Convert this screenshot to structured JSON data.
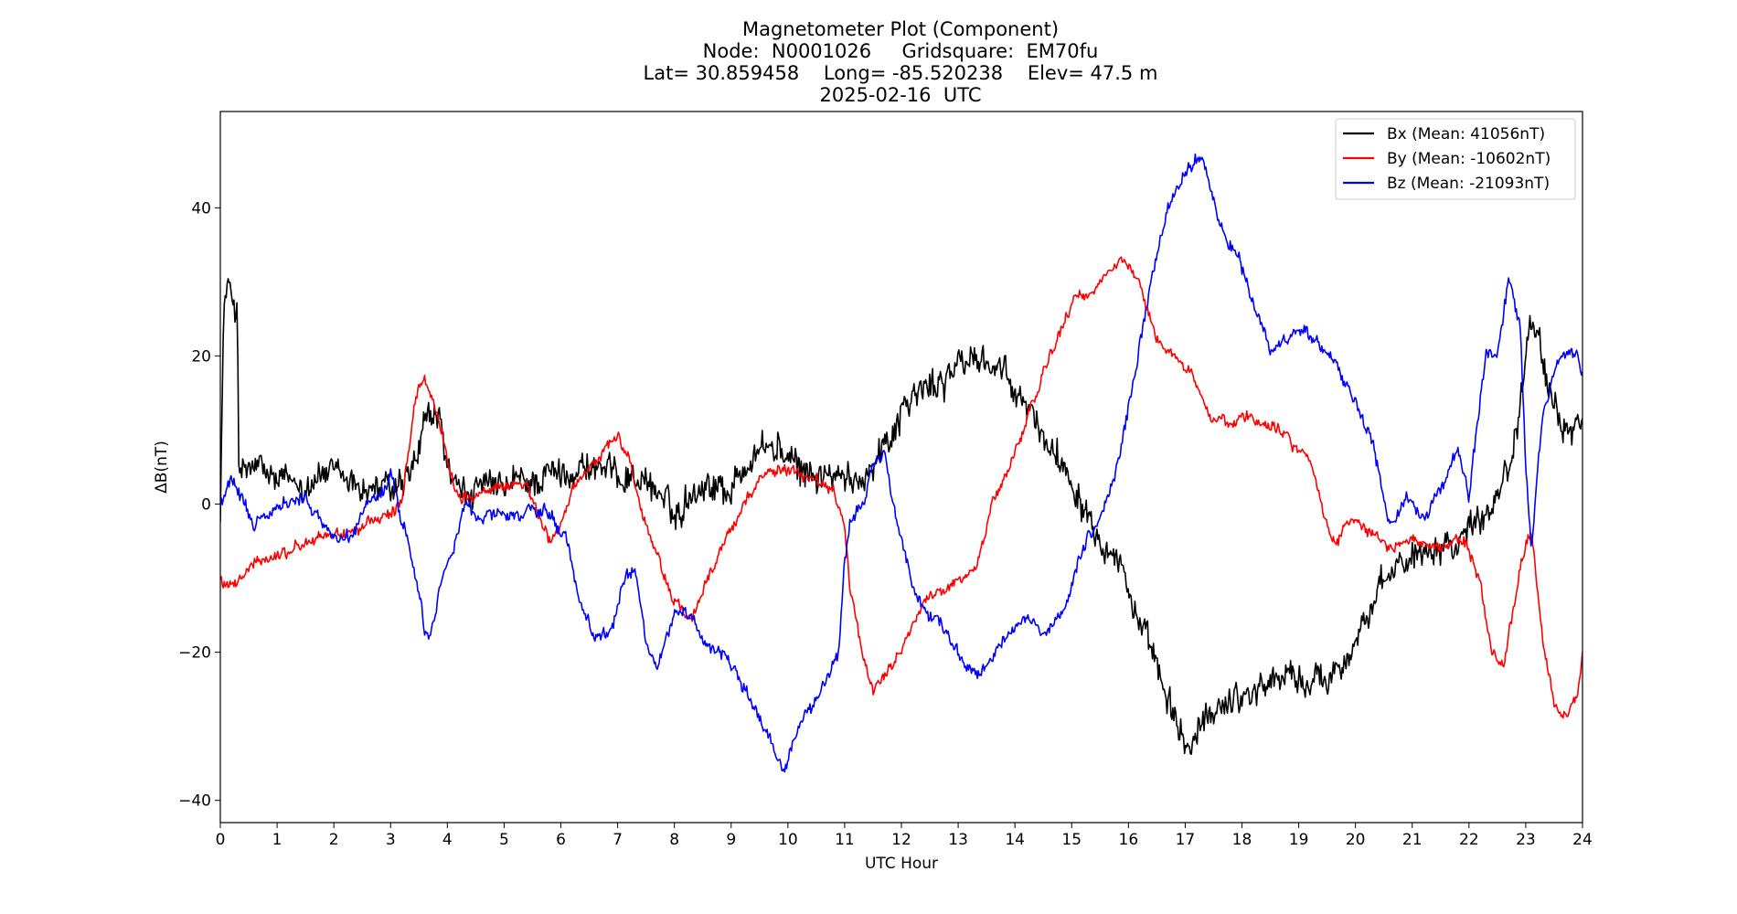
{
  "chart_data": {
    "type": "line",
    "title_lines": [
      "Magnetometer Plot (Component)",
      "Node:  N0001026     Gridsquare:  EM70fu",
      "Lat= 30.859458    Long= -85.520238    Elev= 47.5 m",
      "2025-02-16  UTC"
    ],
    "xlabel": "UTC Hour",
    "ylabel": "ΔB(nT)",
    "xlim": [
      0,
      24
    ],
    "ylim": [
      -43,
      53
    ],
    "xticks": [
      0,
      1,
      2,
      3,
      4,
      5,
      6,
      7,
      8,
      9,
      10,
      11,
      12,
      13,
      14,
      15,
      16,
      17,
      18,
      19,
      20,
      21,
      22,
      23,
      24
    ],
    "yticks": [
      -40,
      -20,
      0,
      20,
      40
    ],
    "ytick_labels": [
      "−40",
      "−20",
      "0",
      "20",
      "40"
    ],
    "grid": false,
    "legend_position": "top-right",
    "series": [
      {
        "name": "Bx (Mean: 41056nT)",
        "color": "#000000",
        "noise": 2.2,
        "x": [
          0,
          0.05,
          0.08,
          0.12,
          0.2,
          0.3,
          0.33,
          0.4,
          0.6,
          0.8,
          1.0,
          1.3,
          1.5,
          1.8,
          2.0,
          2.3,
          2.6,
          2.9,
          3.1,
          3.3,
          3.5,
          3.6,
          3.8,
          3.9,
          4.0,
          4.15,
          4.3,
          4.5,
          4.8,
          5.0,
          5.2,
          5.5,
          5.8,
          6.0,
          6.3,
          6.6,
          6.9,
          7.2,
          7.5,
          7.8,
          8.0,
          8.3,
          8.6,
          9.0,
          9.3,
          9.6,
          9.9,
          10.1,
          10.4,
          10.7,
          11.0,
          11.2,
          11.5,
          11.8,
          12.0,
          12.3,
          12.6,
          12.9,
          13.1,
          13.4,
          13.7,
          14.0,
          14.3,
          14.6,
          14.9,
          15.1,
          15.3,
          15.5,
          15.8,
          16.0,
          16.2,
          16.5,
          16.7,
          16.9,
          17.1,
          17.3,
          17.6,
          17.9,
          18.2,
          18.5,
          18.8,
          19.1,
          19.4,
          19.7,
          20.0,
          20.3,
          20.6,
          20.9,
          21.2,
          21.5,
          21.8,
          22.0,
          22.3,
          22.5,
          22.7,
          22.85,
          23.0,
          23.1,
          23.2,
          23.3,
          23.5,
          23.7,
          23.9,
          24.0
        ],
        "y": [
          0,
          22,
          28,
          29,
          28,
          26,
          4,
          4,
          5,
          4,
          3,
          3,
          3,
          4,
          4,
          3,
          2,
          2,
          2,
          3,
          7,
          11,
          12,
          10,
          5,
          2,
          1,
          2,
          2,
          2,
          3,
          3,
          4,
          4,
          5,
          5,
          4,
          4,
          3,
          1,
          -2,
          2,
          3,
          2,
          6,
          8,
          7,
          5,
          4,
          4,
          3,
          3,
          6,
          9,
          13,
          15,
          16,
          18,
          19,
          20,
          18,
          15,
          12,
          8,
          5,
          2,
          -1,
          -4,
          -7,
          -11,
          -17,
          -22,
          -27,
          -31,
          -33,
          -30,
          -27,
          -26,
          -25,
          -24,
          -23,
          -24,
          -24,
          -22,
          -18,
          -14,
          -10,
          -7,
          -6,
          -5,
          -5,
          -3,
          -1,
          2,
          5,
          10,
          22,
          27,
          24,
          18,
          12,
          10,
          11,
          12
        ]
      },
      {
        "name": "By (Mean: -10602nT)",
        "color": "#ff0000",
        "noise": 0.8,
        "x": [
          0,
          0.1,
          0.3,
          0.6,
          1.0,
          1.3,
          1.6,
          1.9,
          2.2,
          2.5,
          2.8,
          3.0,
          3.2,
          3.3,
          3.4,
          3.5,
          3.6,
          3.7,
          3.9,
          4.0,
          4.2,
          4.5,
          4.8,
          5.0,
          5.2,
          5.4,
          5.6,
          5.8,
          6.0,
          6.2,
          6.5,
          6.8,
          7.0,
          7.2,
          7.5,
          7.8,
          8.0,
          8.3,
          8.6,
          9.0,
          9.3,
          9.6,
          9.9,
          10.2,
          10.5,
          10.8,
          11.0,
          11.1,
          11.3,
          11.5,
          11.8,
          12.1,
          12.4,
          12.7,
          13.0,
          13.3,
          13.6,
          13.9,
          14.1,
          14.3,
          14.6,
          14.9,
          15.1,
          15.3,
          15.6,
          15.9,
          16.2,
          16.5,
          16.8,
          17.1,
          17.4,
          17.7,
          18.0,
          18.3,
          18.6,
          18.9,
          19.2,
          19.5,
          19.7,
          19.8,
          20.0,
          20.3,
          20.6,
          20.9,
          21.2,
          21.5,
          21.8,
          22.0,
          22.2,
          22.4,
          22.6,
          22.8,
          23.0,
          23.1,
          23.3,
          23.5,
          23.7,
          23.9,
          24.0
        ],
        "y": [
          -10,
          -11,
          -11,
          -8,
          -7,
          -6,
          -5,
          -4,
          -4,
          -3,
          -2,
          -1,
          0,
          6,
          12,
          16,
          17,
          15,
          10,
          6,
          1,
          1,
          2,
          2,
          3,
          3,
          -2,
          -5,
          -3,
          2,
          5,
          8,
          9,
          6,
          -3,
          -9,
          -13,
          -16,
          -10,
          -3,
          1,
          4,
          5,
          4,
          3,
          2,
          -3,
          -12,
          -20,
          -25,
          -22,
          -18,
          -13,
          -12,
          -10,
          -9,
          0,
          5,
          9,
          13,
          20,
          25,
          28,
          28,
          31,
          33,
          30,
          22,
          20,
          18,
          12,
          11,
          12,
          11,
          11,
          8,
          6,
          -3,
          -5,
          -3,
          -2,
          -4,
          -6,
          -5,
          -5,
          -6,
          -5,
          -6,
          -11,
          -20,
          -22,
          -13,
          -5,
          -4,
          -18,
          -27,
          -29,
          -26,
          -20
        ]
      },
      {
        "name": "Bz (Mean: -21093nT)",
        "color": "#0000ff",
        "noise": 0.9,
        "x": [
          0,
          0.2,
          0.4,
          0.6,
          0.9,
          1.2,
          1.5,
          1.8,
          2.1,
          2.3,
          2.6,
          2.9,
          3.0,
          3.1,
          3.3,
          3.5,
          3.6,
          3.7,
          3.9,
          4.1,
          4.3,
          4.6,
          4.9,
          5.2,
          5.5,
          5.8,
          6.1,
          6.3,
          6.6,
          6.9,
          7.1,
          7.3,
          7.5,
          7.7,
          8.0,
          8.3,
          8.6,
          8.9,
          9.1,
          9.4,
          9.7,
          9.9,
          10.2,
          10.6,
          10.9,
          11.0,
          11.1,
          11.3,
          11.5,
          11.7,
          11.9,
          12.2,
          12.5,
          12.8,
          13.0,
          13.2,
          13.4,
          13.6,
          13.9,
          14.2,
          14.5,
          14.8,
          15.0,
          15.2,
          15.5,
          15.8,
          16.1,
          16.4,
          16.7,
          17.0,
          17.3,
          17.6,
          17.9,
          18.2,
          18.5,
          18.8,
          19.1,
          19.4,
          19.7,
          20.0,
          20.3,
          20.6,
          20.9,
          21.2,
          21.5,
          21.8,
          22.0,
          22.3,
          22.5,
          22.7,
          22.9,
          23.0,
          23.1,
          23.3,
          23.6,
          23.9,
          24.0
        ],
        "y": [
          0,
          3,
          0,
          -3,
          -1,
          0,
          1,
          -3,
          -5,
          -4,
          0,
          2,
          4,
          1,
          -5,
          -12,
          -17,
          -18,
          -10,
          -6,
          0,
          -2,
          -1,
          -2,
          -1,
          -1,
          -5,
          -12,
          -18,
          -17,
          -10,
          -9,
          -18,
          -22,
          -15,
          -15,
          -19,
          -20,
          -23,
          -27,
          -32,
          -36,
          -30,
          -25,
          -20,
          -8,
          -2,
          0,
          5,
          7,
          -2,
          -11,
          -15,
          -17,
          -20,
          -22,
          -23,
          -21,
          -17,
          -15,
          -18,
          -16,
          -11,
          -6,
          -2,
          5,
          17,
          30,
          40,
          45,
          47,
          38,
          34,
          27,
          21,
          22,
          24,
          21,
          18,
          14,
          8,
          -3,
          1,
          -2,
          2,
          8,
          1,
          20,
          20,
          30,
          24,
          5,
          -6,
          12,
          20,
          20,
          18
        ]
      }
    ]
  }
}
